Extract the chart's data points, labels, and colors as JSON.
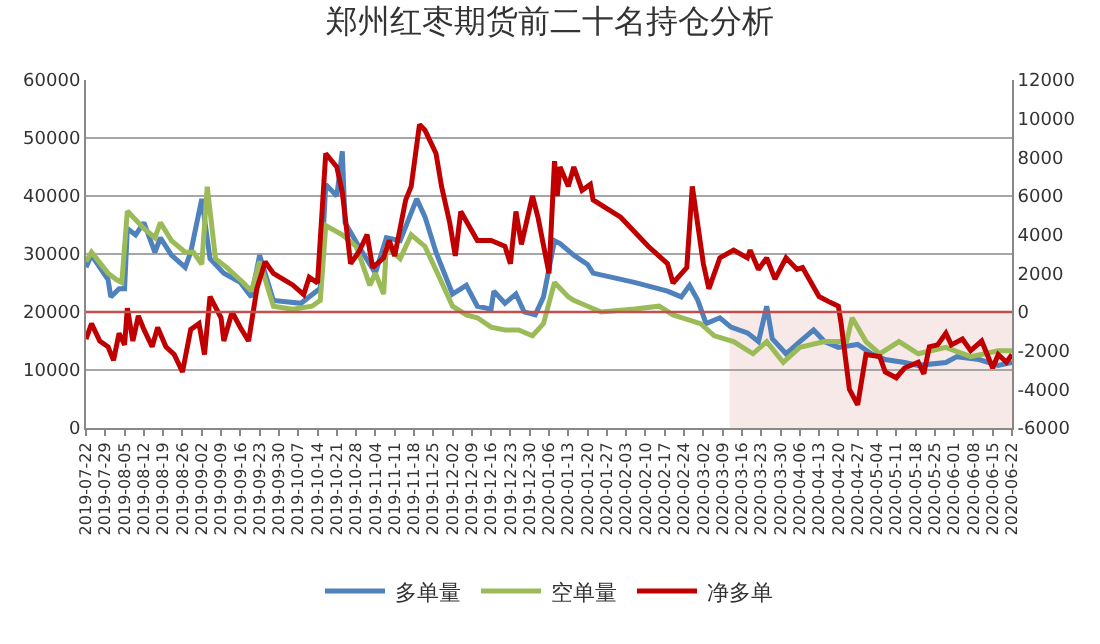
{
  "chart_data": {
    "type": "line",
    "title": "郑州红枣期货前二十名持仓分析",
    "xlim": [
      "2019-07-22",
      "2020-06-22"
    ],
    "xticks": [
      "2019-07-22",
      "2019-07-29",
      "2019-08-05",
      "2019-08-12",
      "2019-08-19",
      "2019-08-26",
      "2019-09-02",
      "2019-09-09",
      "2019-09-16",
      "2019-09-23",
      "2019-09-30",
      "2019-10-07",
      "2019-10-14",
      "2019-10-21",
      "2019-10-28",
      "2019-11-04",
      "2019-11-11",
      "2019-11-18",
      "2019-11-25",
      "2019-12-02",
      "2019-12-09",
      "2019-12-16",
      "2019-12-23",
      "2019-12-30",
      "2020-01-06",
      "2020-01-13",
      "2020-01-20",
      "2020-01-27",
      "2020-02-03",
      "2020-02-10",
      "2020-02-17",
      "2020-02-24",
      "2020-03-02",
      "2020-03-09",
      "2020-03-16",
      "2020-03-23",
      "2020-03-30",
      "2020-04-06",
      "2020-04-13",
      "2020-04-20",
      "2020-04-27",
      "2020-05-04",
      "2020-05-11",
      "2020-05-18",
      "2020-05-25",
      "2020-06-01",
      "2020-06-08",
      "2020-06-15",
      "2020-06-22"
    ],
    "ylim": [
      0,
      60000
    ],
    "yticks": [
      0,
      10000,
      20000,
      30000,
      40000,
      50000,
      60000
    ],
    "y2lim": [
      -6000,
      12000
    ],
    "y2ticks": [
      -6000,
      -4000,
      -2000,
      0,
      2000,
      4000,
      6000,
      8000,
      10000,
      12000
    ],
    "grid": "y",
    "legend": "bottom",
    "marker": "none",
    "line_style": "solid",
    "ref_lines": [
      {
        "axis": "y2",
        "value": 0,
        "color": "#c0504d"
      }
    ],
    "bands": [
      {
        "axis": "x",
        "from": "2020-03-12",
        "to": "2020-06-22",
        "color": "#c0504d"
      }
    ],
    "series": [
      {
        "name": "多单量",
        "color": "#4f81bd",
        "x": [
          "2019-07-22",
          "2019-07-24",
          "2019-07-30",
          "2019-07-31",
          "2019-08-03",
          "2019-08-05",
          "2019-08-06",
          "2019-08-09",
          "2019-08-12",
          "2019-08-16",
          "2019-08-18",
          "2019-08-22",
          "2019-08-27",
          "2019-08-29",
          "2019-09-02",
          "2019-09-05",
          "2019-09-10",
          "2019-09-16",
          "2019-09-20",
          "2019-09-23",
          "2019-09-28",
          "2019-10-08",
          "2019-10-15",
          "2019-10-17",
          "2019-10-21",
          "2019-10-23",
          "2019-10-24",
          "2019-10-29",
          "2019-11-04",
          "2019-11-08",
          "2019-11-13",
          "2019-11-19",
          "2019-11-22",
          "2019-11-26",
          "2019-12-02",
          "2019-12-07",
          "2019-12-11",
          "2019-12-16",
          "2019-12-17",
          "2019-12-21",
          "2019-12-25",
          "2019-12-28",
          "2020-01-01",
          "2020-01-04",
          "2020-01-08",
          "2020-01-10",
          "2020-01-15",
          "2020-01-20",
          "2020-01-22",
          "2020-02-06",
          "2020-02-18",
          "2020-02-23",
          "2020-02-26",
          "2020-02-29",
          "2020-03-03",
          "2020-03-08",
          "2020-03-12",
          "2020-03-18",
          "2020-03-22",
          "2020-03-25",
          "2020-03-27",
          "2020-04-01",
          "2020-04-06",
          "2020-04-11",
          "2020-04-15",
          "2020-04-20",
          "2020-04-27",
          "2020-05-02",
          "2020-05-07",
          "2020-05-14",
          "2020-05-19",
          "2020-05-29",
          "2020-06-02",
          "2020-06-10",
          "2020-06-17",
          "2020-06-22"
        ],
        "values": [
          27700,
          29800,
          25600,
          22600,
          24000,
          24000,
          34400,
          33300,
          35400,
          30300,
          32800,
          29800,
          27700,
          30300,
          39500,
          29200,
          26700,
          25100,
          22600,
          29800,
          22000,
          21500,
          24100,
          42000,
          40000,
          47700,
          35400,
          31300,
          26700,
          32800,
          32300,
          39500,
          36400,
          30300,
          23100,
          24600,
          21000,
          20500,
          23600,
          21500,
          23100,
          20000,
          19500,
          22600,
          32300,
          31800,
          29800,
          28200,
          26700,
          25100,
          23600,
          22600,
          24600,
          22000,
          18000,
          19000,
          17400,
          16400,
          14900,
          21000,
          15400,
          12800,
          14900,
          16900,
          14900,
          13900,
          14400,
          12800,
          11800,
          11300,
          10800,
          11300,
          12300,
          11800,
          10800,
          11300
        ]
      },
      {
        "name": "空单量",
        "color": "#9bbb59",
        "x": [
          "2019-07-22",
          "2019-07-24",
          "2019-07-30",
          "2019-08-02",
          "2019-08-04",
          "2019-08-06",
          "2019-08-09",
          "2019-08-12",
          "2019-08-16",
          "2019-08-18",
          "2019-08-22",
          "2019-08-27",
          "2019-08-30",
          "2019-09-02",
          "2019-09-04",
          "2019-09-07",
          "2019-09-11",
          "2019-09-17",
          "2019-09-20",
          "2019-09-23",
          "2019-09-28",
          "2019-10-05",
          "2019-10-12",
          "2019-10-15",
          "2019-10-17",
          "2019-10-23",
          "2019-10-28",
          "2019-10-30",
          "2019-11-02",
          "2019-11-04",
          "2019-11-07",
          "2019-11-08",
          "2019-11-13",
          "2019-11-17",
          "2019-11-22",
          "2019-11-27",
          "2019-12-02",
          "2019-12-07",
          "2019-12-11",
          "2019-12-16",
          "2019-12-21",
          "2019-12-26",
          "2019-12-31",
          "2020-01-04",
          "2020-01-08",
          "2020-01-13",
          "2020-01-15",
          "2020-01-20",
          "2020-01-25",
          "2020-02-06",
          "2020-02-15",
          "2020-02-20",
          "2020-03-01",
          "2020-03-06",
          "2020-03-13",
          "2020-03-20",
          "2020-03-25",
          "2020-03-31",
          "2020-04-06",
          "2020-04-15",
          "2020-04-23",
          "2020-04-25",
          "2020-04-30",
          "2020-05-05",
          "2020-05-12",
          "2020-05-19",
          "2020-05-29",
          "2020-06-07",
          "2020-06-17",
          "2020-06-22"
        ],
        "values": [
          28700,
          30300,
          26700,
          25600,
          25100,
          37400,
          35900,
          34400,
          32800,
          35400,
          32300,
          30300,
          30300,
          28200,
          41600,
          29200,
          27700,
          25100,
          23600,
          28700,
          21000,
          20500,
          21000,
          22000,
          34900,
          33300,
          31300,
          28700,
          24600,
          26700,
          23100,
          31300,
          29200,
          33300,
          31300,
          26200,
          21000,
          19500,
          19000,
          17400,
          16900,
          16900,
          15900,
          18000,
          25100,
          22600,
          22000,
          21000,
          20000,
          20500,
          21000,
          19500,
          18000,
          15900,
          14900,
          12800,
          14900,
          11300,
          13900,
          14900,
          14900,
          19000,
          14900,
          12800,
          14900,
          12800,
          13900,
          12300,
          13300,
          13300
        ]
      },
      {
        "name": "净多单",
        "color": "#c00000",
        "axis": "y2",
        "x": [
          "2019-07-22",
          "2019-07-24",
          "2019-07-27",
          "2019-07-30",
          "2019-08-01",
          "2019-08-03",
          "2019-08-05",
          "2019-08-06",
          "2019-08-08",
          "2019-08-10",
          "2019-08-12",
          "2019-08-15",
          "2019-08-17",
          "2019-08-20",
          "2019-08-23",
          "2019-08-26",
          "2019-08-29",
          "2019-09-01",
          "2019-09-03",
          "2019-09-05",
          "2019-09-09",
          "2019-09-10",
          "2019-09-13",
          "2019-09-16",
          "2019-09-19",
          "2019-09-22",
          "2019-09-25",
          "2019-09-28",
          "2019-10-05",
          "2019-10-09",
          "2019-10-11",
          "2019-10-14",
          "2019-10-17",
          "2019-10-21",
          "2019-10-23",
          "2019-10-26",
          "2019-10-29",
          "2019-11-01",
          "2019-11-03",
          "2019-11-07",
          "2019-11-09",
          "2019-11-11",
          "2019-11-15",
          "2019-11-17",
          "2019-11-20",
          "2019-11-22",
          "2019-11-26",
          "2019-11-28",
          "2019-12-01",
          "2019-12-03",
          "2019-12-05",
          "2019-12-11",
          "2019-12-16",
          "2019-12-21",
          "2019-12-23",
          "2019-12-25",
          "2019-12-27",
          "2019-12-31",
          "2020-01-02",
          "2020-01-06",
          "2020-01-08",
          "2020-01-09",
          "2020-01-10",
          "2020-01-13",
          "2020-01-15",
          "2020-01-18",
          "2020-01-21",
          "2020-01-22",
          "2020-02-01",
          "2020-02-11",
          "2020-02-18",
          "2020-02-20",
          "2020-02-25",
          "2020-02-27",
          "2020-03-02",
          "2020-03-04",
          "2020-03-08",
          "2020-03-13",
          "2020-03-18",
          "2020-03-19",
          "2020-03-22",
          "2020-03-25",
          "2020-03-28",
          "2020-04-01",
          "2020-04-05",
          "2020-04-07",
          "2020-04-09",
          "2020-04-13",
          "2020-04-17",
          "2020-04-20",
          "2020-04-21",
          "2020-04-24",
          "2020-04-27",
          "2020-04-30",
          "2020-05-05",
          "2020-05-07",
          "2020-05-11",
          "2020-05-14",
          "2020-05-19",
          "2020-05-21",
          "2020-05-23",
          "2020-05-26",
          "2020-05-29",
          "2020-05-31",
          "2020-06-04",
          "2020-06-07",
          "2020-06-11",
          "2020-06-15",
          "2020-06-17",
          "2020-06-20",
          "2020-06-22"
        ],
        "values": [
          -1400,
          -600,
          -1500,
          -1800,
          -2500,
          -1100,
          -1700,
          200,
          -1500,
          -200,
          -900,
          -1800,
          -800,
          -1800,
          -2200,
          -3100,
          -900,
          -600,
          -2200,
          800,
          -300,
          -1500,
          0,
          -800,
          -1500,
          1200,
          2600,
          2000,
          1400,
          900,
          1800,
          1500,
          8200,
          7500,
          6200,
          2500,
          3100,
          4000,
          2300,
          2800,
          3700,
          2900,
          5800,
          6500,
          9700,
          9400,
          8200,
          6500,
          4600,
          2900,
          5200,
          3700,
          3700,
          3400,
          2500,
          5200,
          3500,
          6000,
          4900,
          2000,
          7800,
          6000,
          7500,
          6500,
          7500,
          6300,
          6600,
          5800,
          4900,
          3400,
          2500,
          1500,
          2300,
          6500,
          2500,
          1200,
          2800,
          3200,
          2800,
          3200,
          2200,
          2800,
          1700,
          2800,
          2200,
          2300,
          1800,
          800,
          500,
          300,
          -600,
          -4000,
          -4800,
          -2200,
          -2300,
          -3100,
          -3400,
          -2900,
          -2600,
          -3200,
          -1800,
          -1700,
          -1100,
          -1700,
          -1400,
          -2000,
          -1500,
          -2900,
          -2200,
          -2600,
          -2200
        ]
      }
    ]
  }
}
